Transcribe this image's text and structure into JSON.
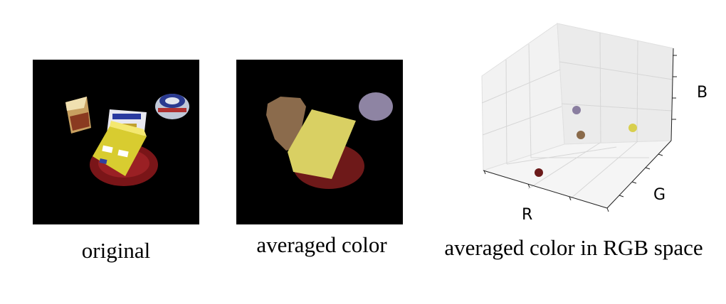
{
  "captions": {
    "original": "original",
    "averaged": "averaged color",
    "rgb_space": "averaged color in RGB space"
  },
  "axes": {
    "x": "R",
    "y": "G",
    "z": "B"
  },
  "chart_data": {
    "type": "scatter",
    "title": "averaged color in RGB space",
    "xlabel": "R",
    "ylabel": "G",
    "zlabel": "B",
    "points": [
      {
        "name": "red plate",
        "color": "#6b1a1a"
      },
      {
        "name": "brown box",
        "color": "#8a6a4a"
      },
      {
        "name": "lavender can",
        "color": "#8a7ea0"
      },
      {
        "name": "yellow box",
        "color": "#d8cf4e"
      }
    ]
  },
  "colors": {
    "background": "#000000",
    "red": "#6e1919",
    "brown": "#8b6b4c",
    "lavender": "#8e84a3",
    "yellow": "#d9d063"
  }
}
